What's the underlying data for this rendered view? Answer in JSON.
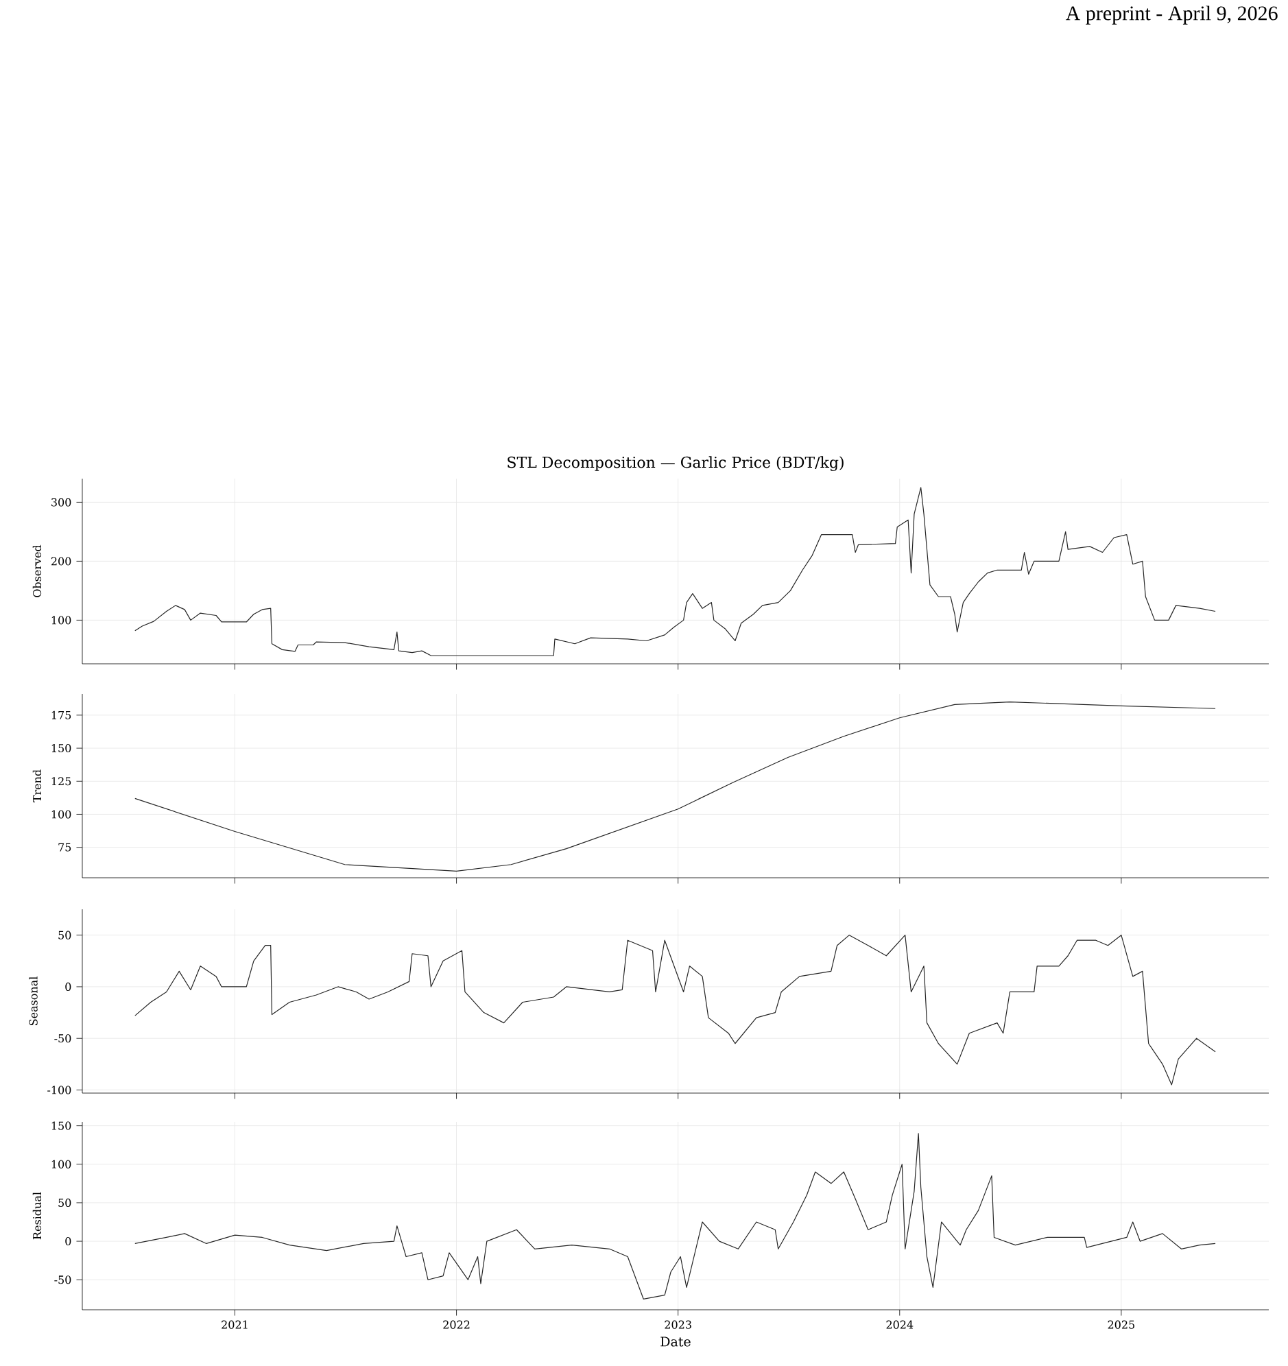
{
  "chart_data": [
    {
      "type": "line",
      "title": "STL Decomposition — Garlic Price (BDT/kg)",
      "ylabel": "Observed",
      "annotations": [
        "A preprint - April 9, 2026"
      ],
      "grid": true,
      "tick_labels": "y",
      "xlim": [
        "2020-04-24",
        "2025-09-01"
      ],
      "xticks": [
        {
          "value": "2021-01-01",
          "label": null
        },
        {
          "value": "2022-01-01",
          "label": null
        },
        {
          "value": "2023-01-01",
          "label": null
        },
        {
          "value": "2024-01-01",
          "label": null
        },
        {
          "value": "2025-01-01",
          "label": null
        }
      ],
      "ylim": [
        26,
        340
      ],
      "yticks": [
        100,
        200,
        300
      ],
      "series": [
        {
          "color": "#262626",
          "x": [
            "2020-07-20",
            "2020-08-01",
            "2020-08-20",
            "2020-09-10",
            "2020-09-25",
            "2020-10-10",
            "2020-10-20",
            "2020-11-05",
            "2020-12-01",
            "2020-12-10",
            "2021-01-20",
            "2021-02-01",
            "2021-02-15",
            "2021-03-01",
            "2021-03-03",
            "2021-03-20",
            "2021-04-10",
            "2021-04-15",
            "2021-05-10",
            "2021-05-15",
            "2021-07-01",
            "2021-08-10",
            "2021-09-20",
            "2021-09-25",
            "2021-09-28",
            "2021-10-20",
            "2021-11-05",
            "2021-11-20",
            "2022-06-10",
            "2022-06-12",
            "2022-07-15",
            "2022-08-10",
            "2022-10-10",
            "2022-11-10",
            "2022-12-10",
            "2022-12-25",
            "2023-01-10",
            "2023-01-15",
            "2023-01-25",
            "2023-02-10",
            "2023-02-25",
            "2023-03-01",
            "2023-03-20",
            "2023-04-05",
            "2023-04-15",
            "2023-05-05",
            "2023-05-20",
            "2023-06-15",
            "2023-07-05",
            "2023-07-25",
            "2023-08-10",
            "2023-08-25",
            "2023-10-15",
            "2023-10-20",
            "2023-10-25",
            "2023-12-25",
            "2023-12-28",
            "2024-01-15",
            "2024-01-20",
            "2024-01-25",
            "2024-02-05",
            "2024-02-10",
            "2024-02-20",
            "2024-03-05",
            "2024-03-25",
            "2024-04-01",
            "2024-04-05",
            "2024-04-15",
            "2024-04-25",
            "2024-05-10",
            "2024-05-25",
            "2024-06-10",
            "2024-07-20",
            "2024-07-25",
            "2024-08-01",
            "2024-08-10",
            "2024-09-20",
            "2024-10-01",
            "2024-10-05",
            "2024-11-10",
            "2024-12-01",
            "2024-12-20",
            "2025-01-10",
            "2025-01-20",
            "2025-02-05",
            "2025-02-10",
            "2025-02-25",
            "2025-03-20",
            "2025-04-01",
            "2025-05-10",
            "2025-06-05"
          ],
          "values": [
            82,
            90,
            98,
            115,
            125,
            118,
            100,
            112,
            108,
            97,
            97,
            110,
            118,
            120,
            60,
            50,
            47,
            58,
            58,
            63,
            62,
            55,
            50,
            80,
            48,
            45,
            48,
            40,
            40,
            68,
            60,
            70,
            68,
            65,
            75,
            88,
            100,
            130,
            145,
            120,
            130,
            100,
            85,
            65,
            95,
            110,
            125,
            130,
            150,
            185,
            210,
            245,
            245,
            215,
            228,
            230,
            258,
            270,
            180,
            280,
            325,
            280,
            160,
            140,
            140,
            110,
            80,
            130,
            145,
            165,
            180,
            185,
            185,
            215,
            178,
            200,
            200,
            250,
            220,
            225,
            215,
            240,
            245,
            195,
            200,
            140,
            100,
            100,
            125,
            120,
            115
          ]
        }
      ]
    },
    {
      "type": "line",
      "ylabel": "Trend",
      "grid": true,
      "tick_labels": "y",
      "xlim": [
        "2020-04-24",
        "2025-09-01"
      ],
      "xticks": [
        {
          "value": "2021-01-01",
          "label": null
        },
        {
          "value": "2022-01-01",
          "label": null
        },
        {
          "value": "2023-01-01",
          "label": null
        },
        {
          "value": "2024-01-01",
          "label": null
        },
        {
          "value": "2025-01-01",
          "label": null
        }
      ],
      "ylim": [
        52,
        191
      ],
      "yticks": [
        75,
        100,
        125,
        150,
        175
      ],
      "series": [
        {
          "color": "#262626",
          "x": [
            "2020-07-20",
            "2021-01-01",
            "2021-07-01",
            "2022-01-01",
            "2022-04-01",
            "2022-07-01",
            "2023-01-01",
            "2023-04-01",
            "2023-07-01",
            "2023-10-01",
            "2024-01-01",
            "2024-04-01",
            "2024-07-01",
            "2025-01-01",
            "2025-06-05"
          ],
          "values": [
            112,
            87,
            62,
            57,
            62,
            74,
            104,
            124,
            143,
            159,
            173,
            183,
            185,
            182,
            180
          ]
        }
      ]
    },
    {
      "type": "line",
      "ylabel": "Seasonal",
      "grid": true,
      "tick_labels": "y",
      "xlim": [
        "2020-04-24",
        "2025-09-01"
      ],
      "xticks": [
        {
          "value": "2021-01-01",
          "label": null
        },
        {
          "value": "2022-01-01",
          "label": null
        },
        {
          "value": "2023-01-01",
          "label": null
        },
        {
          "value": "2024-01-01",
          "label": null
        },
        {
          "value": "2025-01-01",
          "label": null
        }
      ],
      "ylim": [
        -103,
        75
      ],
      "yticks": [
        -100,
        -50,
        0,
        50
      ],
      "series": [
        {
          "color": "#262626",
          "x": [
            "2020-07-20",
            "2020-08-15",
            "2020-09-10",
            "2020-10-01",
            "2020-10-20",
            "2020-11-05",
            "2020-12-01",
            "2020-12-10",
            "2021-01-20",
            "2021-02-01",
            "2021-02-20",
            "2021-03-01",
            "2021-03-03",
            "2021-04-01",
            "2021-05-15",
            "2021-06-20",
            "2021-07-20",
            "2021-08-10",
            "2021-09-10",
            "2021-10-15",
            "2021-10-20",
            "2021-11-15",
            "2021-11-20",
            "2021-12-10",
            "2022-01-10",
            "2022-01-15",
            "2022-02-15",
            "2022-03-20",
            "2022-04-20",
            "2022-06-10",
            "2022-07-01",
            "2022-09-10",
            "2022-10-01",
            "2022-10-10",
            "2022-11-20",
            "2022-11-25",
            "2022-12-10",
            "2023-01-10",
            "2023-01-20",
            "2023-02-10",
            "2023-02-20",
            "2023-03-25",
            "2023-04-05",
            "2023-05-10",
            "2023-06-10",
            "2023-06-20",
            "2023-07-20",
            "2023-09-10",
            "2023-09-20",
            "2023-10-10",
            "2023-11-10",
            "2023-12-10",
            "2024-01-10",
            "2024-01-20",
            "2024-02-10",
            "2024-02-15",
            "2024-03-05",
            "2024-04-05",
            "2024-04-25",
            "2024-06-10",
            "2024-06-20",
            "2024-07-01",
            "2024-08-10",
            "2024-08-15",
            "2024-09-20",
            "2024-10-05",
            "2024-10-20",
            "2024-11-20",
            "2024-12-10",
            "2025-01-01",
            "2025-01-20",
            "2025-02-05",
            "2025-02-15",
            "2025-03-10",
            "2025-03-25",
            "2025-04-05",
            "2025-05-05",
            "2025-06-05"
          ],
          "values": [
            -28,
            -15,
            -5,
            15,
            -3,
            20,
            10,
            0,
            0,
            25,
            40,
            40,
            -27,
            -15,
            -8,
            0,
            -5,
            -12,
            -5,
            5,
            32,
            30,
            0,
            25,
            35,
            -5,
            -25,
            -35,
            -15,
            -10,
            0,
            -5,
            -3,
            45,
            35,
            -5,
            45,
            -5,
            20,
            10,
            -30,
            -45,
            -55,
            -30,
            -25,
            -5,
            10,
            15,
            40,
            50,
            40,
            30,
            50,
            -5,
            20,
            -35,
            -55,
            -75,
            -45,
            -35,
            -45,
            -5,
            -5,
            20,
            20,
            30,
            45,
            45,
            40,
            50,
            10,
            15,
            -55,
            -75,
            -95,
            -70,
            -50,
            -63
          ]
        }
      ]
    },
    {
      "type": "line",
      "ylabel": "Residual",
      "xlabel": "Date",
      "grid": true,
      "xlim": [
        "2020-04-24",
        "2025-09-01"
      ],
      "xticks": [
        {
          "value": "2021-01-01",
          "label": "2021"
        },
        {
          "value": "2022-01-01",
          "label": "2022"
        },
        {
          "value": "2023-01-01",
          "label": "2023"
        },
        {
          "value": "2024-01-01",
          "label": "2024"
        },
        {
          "value": "2025-01-01",
          "label": "2025"
        }
      ],
      "ylim": [
        -89,
        155
      ],
      "yticks": [
        -50,
        0,
        50,
        100,
        150
      ],
      "series": [
        {
          "color": "#262626",
          "x": [
            "2020-07-20",
            "2020-09-10",
            "2020-10-10",
            "2020-11-15",
            "2021-01-01",
            "2021-02-15",
            "2021-04-01",
            "2021-06-01",
            "2021-08-01",
            "2021-09-20",
            "2021-09-25",
            "2021-10-10",
            "2021-11-05",
            "2021-11-15",
            "2021-12-10",
            "2021-12-20",
            "2022-01-20",
            "2022-02-05",
            "2022-02-10",
            "2022-02-20",
            "2022-04-10",
            "2022-05-10",
            "2022-07-10",
            "2022-09-10",
            "2022-10-10",
            "2022-11-05",
            "2022-12-10",
            "2022-12-20",
            "2023-01-05",
            "2023-01-15",
            "2023-02-10",
            "2023-03-10",
            "2023-04-10",
            "2023-05-10",
            "2023-06-10",
            "2023-06-15",
            "2023-07-10",
            "2023-08-01",
            "2023-08-15",
            "2023-09-10",
            "2023-10-01",
            "2023-10-20",
            "2023-11-10",
            "2023-12-10",
            "2023-12-20",
            "2024-01-05",
            "2024-01-10",
            "2024-01-25",
            "2024-02-01",
            "2024-02-05",
            "2024-02-15",
            "2024-02-25",
            "2024-03-10",
            "2024-04-10",
            "2024-04-20",
            "2024-05-10",
            "2024-06-01",
            "2024-06-05",
            "2024-07-10",
            "2024-09-01",
            "2024-11-01",
            "2024-11-05",
            "2025-01-10",
            "2025-01-20",
            "2025-02-01",
            "2025-03-10",
            "2025-04-10",
            "2025-05-10",
            "2025-06-05"
          ],
          "values": [
            -3,
            5,
            10,
            -3,
            8,
            5,
            -5,
            -12,
            -3,
            0,
            20,
            -20,
            -15,
            -50,
            -45,
            -15,
            -50,
            -20,
            -55,
            0,
            15,
            -10,
            -5,
            -10,
            -20,
            -75,
            -70,
            -40,
            -20,
            -60,
            25,
            0,
            -10,
            25,
            15,
            -10,
            25,
            60,
            90,
            75,
            90,
            55,
            15,
            25,
            60,
            100,
            -10,
            65,
            140,
            70,
            -20,
            -60,
            25,
            -5,
            15,
            40,
            85,
            5,
            -5,
            5,
            5,
            -8,
            5,
            25,
            0,
            10,
            -10,
            -5,
            -3
          ]
        }
      ]
    }
  ]
}
